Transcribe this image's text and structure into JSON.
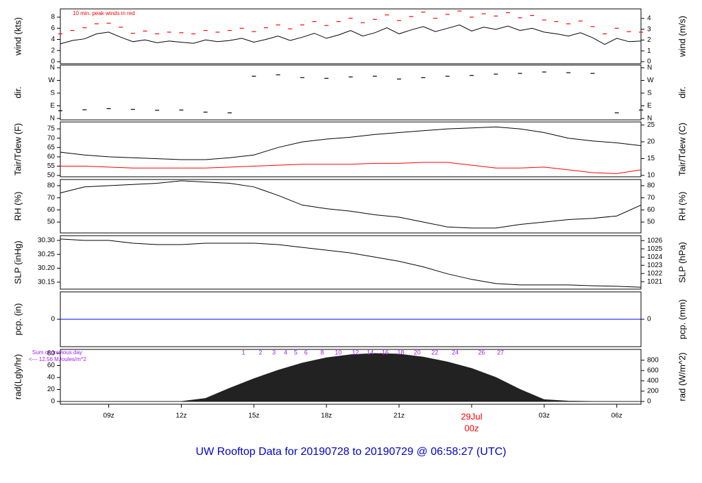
{
  "chart_data": [
    {
      "type": "line",
      "ylabel": "wind (kts)",
      "y2label": "wind (m/s)",
      "annotation": "10 min. peak winds in red",
      "xlim": [
        7,
        31
      ],
      "ylim": [
        -0.37,
        9.48
      ],
      "yticks": [
        0,
        2,
        4,
        6,
        8
      ],
      "y2lim": [
        -0.19,
        4.88
      ],
      "y2ticks": [
        0,
        1,
        2,
        3,
        4
      ],
      "x": [
        7,
        7.5,
        8,
        8.5,
        9,
        9.5,
        10,
        10.5,
        11,
        11.5,
        12,
        12.5,
        13,
        13.5,
        14,
        14.5,
        15,
        15.5,
        16,
        16.5,
        17,
        17.5,
        18,
        18.5,
        19,
        19.5,
        20,
        20.5,
        21,
        21.5,
        22,
        22.5,
        23,
        23.5,
        24,
        24.5,
        25,
        25.5,
        26,
        26.5,
        27,
        27.5,
        28,
        28.5,
        29,
        29.5,
        30,
        30.5,
        31
      ],
      "series": [
        {
          "name": "wind",
          "style": "line",
          "color": "#000000",
          "values": [
            3.2,
            3.8,
            4.1,
            5.0,
            5.3,
            4.4,
            3.6,
            3.9,
            3.4,
            3.7,
            3.5,
            3.3,
            3.9,
            3.6,
            3.8,
            4.2,
            3.5,
            4.0,
            4.6,
            3.8,
            4.4,
            5.1,
            4.2,
            4.8,
            5.6,
            4.6,
            5.2,
            6.1,
            5.0,
            5.7,
            6.3,
            5.4,
            6.0,
            6.6,
            5.5,
            6.2,
            5.8,
            6.4,
            5.6,
            6.0,
            5.3,
            5.0,
            4.6,
            5.2,
            4.3,
            3.1,
            4.2,
            3.6,
            3.7
          ]
        },
        {
          "name": "peak",
          "style": "dash",
          "color": "#ff0000",
          "values": [
            5.0,
            5.6,
            6.1,
            6.8,
            6.9,
            6.2,
            5.1,
            5.5,
            5.0,
            5.3,
            5.2,
            5.0,
            5.6,
            5.3,
            5.6,
            6.0,
            5.4,
            6.1,
            6.6,
            5.9,
            6.6,
            7.2,
            6.5,
            7.2,
            7.8,
            7.0,
            7.6,
            8.4,
            7.4,
            8.1,
            8.9,
            7.8,
            8.5,
            9.1,
            8.0,
            8.6,
            8.2,
            8.8,
            7.9,
            8.3,
            7.5,
            7.2,
            6.8,
            7.3,
            6.3,
            5.0,
            6.0,
            5.4,
            5.3
          ]
        }
      ]
    },
    {
      "type": "scatter",
      "ylabel": "dir.",
      "y2label": "dir.",
      "xlim": [
        7,
        31
      ],
      "ylim": [
        -10,
        379
      ],
      "yticks": [
        {
          "value": 0,
          "label": "N"
        },
        {
          "value": 90,
          "label": "E"
        },
        {
          "value": 180,
          "label": "S"
        },
        {
          "value": 270,
          "label": "W"
        },
        {
          "value": 360,
          "label": "N"
        }
      ],
      "y2lim": [
        -10,
        379
      ],
      "y2ticks": [
        {
          "value": 0,
          "label": "N"
        },
        {
          "value": 90,
          "label": "E"
        },
        {
          "value": 180,
          "label": "S"
        },
        {
          "value": 270,
          "label": "W"
        },
        {
          "value": 360,
          "label": "N"
        }
      ],
      "x": [
        7,
        8,
        9,
        10,
        11,
        12,
        13,
        14,
        15,
        16,
        17,
        18,
        19,
        20,
        21,
        22,
        23,
        24,
        25,
        26,
        27,
        28,
        29,
        30,
        31
      ],
      "series": [
        {
          "name": "dir",
          "style": "dash",
          "color": "#000000",
          "values": [
            55,
            62,
            70,
            65,
            58,
            60,
            45,
            40,
            300,
            310,
            290,
            285,
            295,
            300,
            280,
            290,
            300,
            305,
            315,
            320,
            330,
            325,
            320,
            40,
            60
          ]
        }
      ]
    },
    {
      "type": "line",
      "ylabel": "Tair/Tdew (F)",
      "y2label": "Tair/Tdew (C)",
      "xlim": [
        7,
        31
      ],
      "ylim": [
        49.3,
        78.7
      ],
      "yticks": [
        50,
        55,
        60,
        65,
        70,
        75
      ],
      "y2lim": [
        9.6,
        25.9
      ],
      "y2ticks": [
        10,
        15,
        20,
        25
      ],
      "x": [
        7,
        8,
        9,
        10,
        11,
        12,
        13,
        14,
        15,
        16,
        17,
        18,
        19,
        20,
        21,
        22,
        23,
        24,
        25,
        26,
        27,
        28,
        29,
        30,
        31
      ],
      "series": [
        {
          "name": "Tair",
          "style": "line",
          "color": "#000000",
          "values": [
            62.5,
            61,
            60,
            59.5,
            59,
            58.5,
            58.5,
            59.5,
            61,
            65,
            68,
            69.5,
            70.5,
            72,
            73,
            74,
            75,
            75.5,
            76,
            75,
            73,
            70,
            68.5,
            67.5,
            66
          ]
        },
        {
          "name": "Tdew",
          "style": "line",
          "color": "#ff0000",
          "values": [
            55,
            55,
            54.5,
            54,
            54,
            54,
            54,
            54.5,
            55,
            55.5,
            56,
            56,
            56,
            56.5,
            56.5,
            57,
            57,
            55.5,
            54,
            54,
            54.5,
            53,
            51.5,
            51,
            53
          ]
        }
      ]
    },
    {
      "type": "line",
      "ylabel": "RH (%)",
      "y2label": "RH (%)",
      "xlim": [
        7,
        31
      ],
      "ylim": [
        41,
        85.1
      ],
      "yticks": [
        50,
        60,
        70,
        80
      ],
      "y2lim": [
        41,
        85.1
      ],
      "y2ticks": [
        50,
        60,
        70,
        80
      ],
      "x": [
        7,
        8,
        9,
        10,
        11,
        12,
        13,
        14,
        15,
        16,
        17,
        18,
        19,
        20,
        21,
        22,
        23,
        24,
        25,
        26,
        27,
        28,
        29,
        30,
        31
      ],
      "series": [
        {
          "name": "RH",
          "style": "line",
          "color": "#000000",
          "values": [
            74,
            79,
            80,
            81,
            82,
            84,
            83,
            82,
            79,
            72,
            64,
            61,
            59,
            56,
            54,
            50,
            46,
            45,
            45,
            48,
            50,
            52,
            53,
            55,
            64
          ]
        }
      ]
    },
    {
      "type": "line",
      "ylabel": "SLP (inHg)",
      "y2label": "SLP (hPa)",
      "xlim": [
        7,
        31
      ],
      "ylim": [
        30.125,
        30.317
      ],
      "yticks": [
        30.15,
        {
          "value": 30.2,
          "label": "30.20"
        },
        30.25,
        {
          "value": 30.3,
          "label": "30.30"
        }
      ],
      "y2lim": [
        1020.1,
        1026.6
      ],
      "y2ticks": [
        1021,
        1022,
        1023,
        1024,
        1025,
        1026
      ],
      "x": [
        7,
        8,
        9,
        10,
        11,
        12,
        13,
        14,
        15,
        16,
        17,
        18,
        19,
        20,
        21,
        22,
        23,
        24,
        25,
        26,
        27,
        28,
        29,
        30,
        31
      ],
      "series": [
        {
          "name": "SLP",
          "style": "line",
          "color": "#000000",
          "values": [
            30.305,
            30.3,
            30.3,
            30.29,
            30.285,
            30.285,
            30.29,
            30.29,
            30.29,
            30.285,
            30.275,
            30.265,
            30.255,
            30.24,
            30.225,
            30.205,
            30.18,
            30.16,
            30.145,
            30.14,
            30.14,
            30.14,
            30.137,
            30.135,
            30.132
          ]
        }
      ]
    },
    {
      "type": "line",
      "ylabel": "pcp. (in)",
      "y2label": "pcp. (mm)",
      "xlim": [
        7,
        31
      ],
      "ylim": [
        -1,
        1
      ],
      "yticks": [
        0
      ],
      "y2lim": [
        -1,
        1
      ],
      "y2ticks": [
        0
      ],
      "x": [
        7,
        8,
        9,
        10,
        11,
        12,
        13,
        14,
        15,
        16,
        17,
        18,
        19,
        20,
        21,
        22,
        23,
        24,
        25,
        26,
        27,
        28,
        29,
        30,
        31
      ],
      "series": [
        {
          "name": "pcp",
          "style": "line",
          "color": "#0000ff",
          "values": [
            0,
            0,
            0,
            0,
            0,
            0,
            0,
            0,
            0,
            0,
            0,
            0,
            0,
            0,
            0,
            0,
            0,
            0,
            0,
            0,
            0,
            0,
            0,
            0,
            0
          ]
        }
      ]
    },
    {
      "type": "area",
      "ylabel": "rad(Lgly/hr)",
      "y2label": "rad (W/m^2)",
      "annotations": [
        "Sum of previous day",
        "<--- 12.56 MJoules/m^2"
      ],
      "annotation_color": "#a020f0",
      "xlim": [
        7,
        31
      ],
      "ylim": [
        -4.6,
        86.9
      ],
      "yticks": [
        0,
        20,
        40,
        60,
        80
      ],
      "y2lim": [
        -53.5,
        1010
      ],
      "y2ticks": [
        0,
        200,
        400,
        600,
        800
      ],
      "xticks": [
        {
          "value": 9,
          "label": "09z"
        },
        {
          "value": 12,
          "label": "12z"
        },
        {
          "value": 15,
          "label": "15z"
        },
        {
          "value": 18,
          "label": "18z"
        },
        {
          "value": 21,
          "label": "21z"
        },
        {
          "value": 24,
          "label": "00z"
        },
        {
          "value": 27,
          "label": "03z"
        },
        {
          "value": 30,
          "label": "06z"
        }
      ],
      "date_mark": {
        "value": 24,
        "label": "29Jul"
      },
      "highlight_color": "#ff0000",
      "marker_x": [
        14.57,
        15.27,
        15.83,
        16.31,
        16.73,
        17.15,
        17.82,
        18.49,
        19.2,
        19.81,
        20.43,
        21.07,
        21.75,
        22.48,
        23.32,
        24.41,
        25.19
      ],
      "marker_labels": [
        1,
        2,
        3,
        4,
        5,
        6,
        8,
        10,
        12,
        14,
        16,
        18,
        20,
        22,
        24,
        26,
        27
      ],
      "x": [
        7,
        8,
        9,
        10,
        11,
        12,
        13,
        14,
        15,
        16,
        17,
        18,
        19,
        20,
        21,
        22,
        23,
        24,
        25,
        26,
        27,
        28,
        29,
        30,
        31
      ],
      "series": [
        {
          "name": "rad",
          "style": "area",
          "color": "#222222",
          "values": [
            0,
            0,
            0,
            0,
            0,
            0,
            5,
            22,
            38,
            52,
            64,
            73,
            78,
            80,
            79,
            74,
            66,
            55,
            40,
            20,
            3,
            0.5,
            0,
            0,
            0
          ]
        }
      ]
    }
  ],
  "footer_title": "UW Rooftop Data for 20190728  to  20190729 @ 06:58:27  (UTC)"
}
